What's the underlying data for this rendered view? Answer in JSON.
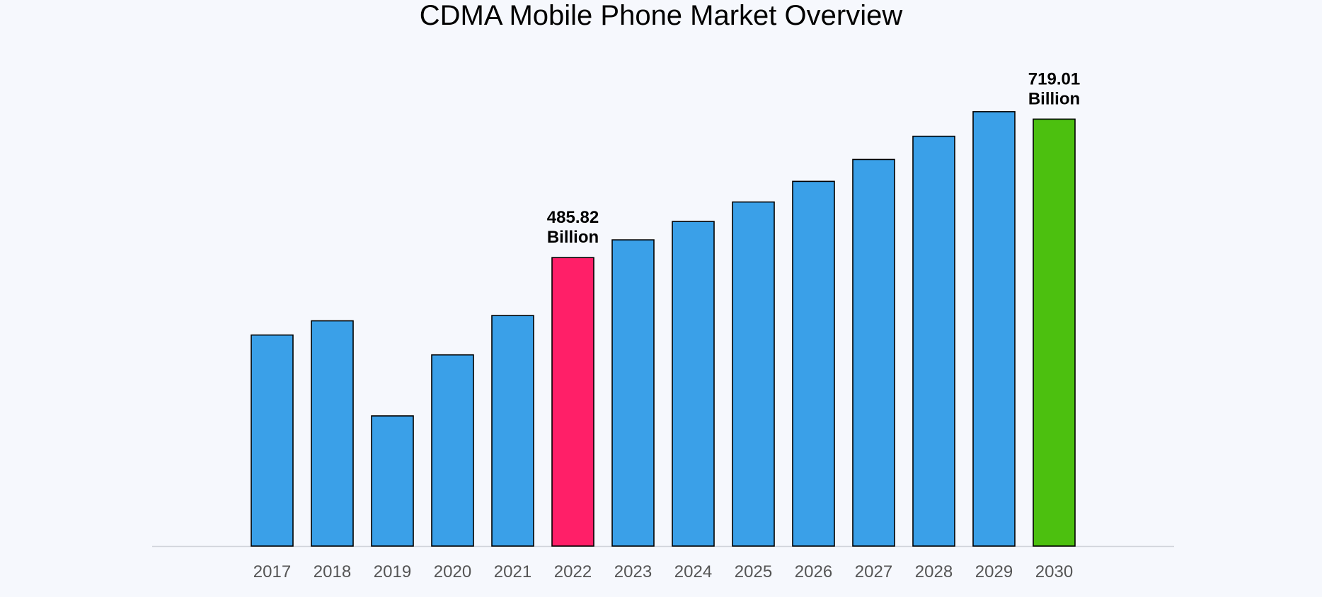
{
  "chart_data": {
    "type": "bar",
    "title": "CDMA Mobile Phone Market Overview",
    "xlabel": "",
    "ylabel": "",
    "categories": [
      "2017",
      "2018",
      "2019",
      "2020",
      "2021",
      "2022",
      "2023",
      "2024",
      "2025",
      "2026",
      "2027",
      "2028",
      "2029",
      "2030"
    ],
    "values": [
      355.41,
      379.31,
      219.21,
      321.96,
      388.23,
      485.82,
      515.68,
      546.63,
      579.43,
      614.19,
      651.04,
      690.11,
      731.52,
      719.01
    ],
    "ylim": [
      0,
      810
    ],
    "grid": false,
    "legend": "none",
    "colors": {
      "default": "#3aa0e8",
      "2022": "#ff1f68",
      "2030": "#4cc00f"
    },
    "annotations": [
      {
        "category": "2022",
        "lines": [
          "485.82",
          "Billion"
        ]
      },
      {
        "category": "2030",
        "lines": [
          "719.01",
          "Billion"
        ]
      }
    ]
  },
  "colors": {
    "background": "#f6f8fd",
    "axis": "#d0d3da",
    "bar_stroke": "#000000"
  }
}
